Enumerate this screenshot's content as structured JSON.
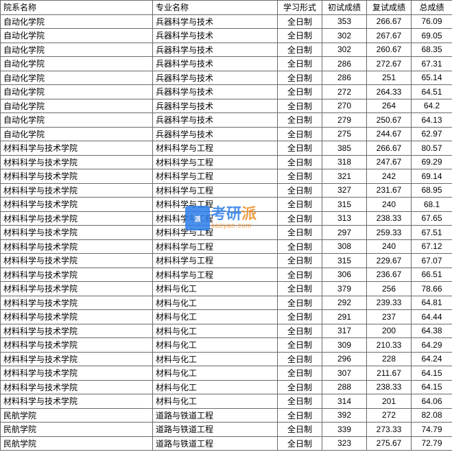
{
  "headers": {
    "dept": "院系名称",
    "major": "专业名称",
    "form": "学习形式",
    "score1": "初试成绩",
    "score2": "复试成绩",
    "total": "总成绩"
  },
  "rows": [
    {
      "dept": "自动化学院",
      "major": "兵器科学与技术",
      "form": "全日制",
      "s1": "353",
      "s2": "266.67",
      "t": "76.09"
    },
    {
      "dept": "自动化学院",
      "major": "兵器科学与技术",
      "form": "全日制",
      "s1": "302",
      "s2": "267.67",
      "t": "69.05"
    },
    {
      "dept": "自动化学院",
      "major": "兵器科学与技术",
      "form": "全日制",
      "s1": "302",
      "s2": "260.67",
      "t": "68.35"
    },
    {
      "dept": "自动化学院",
      "major": "兵器科学与技术",
      "form": "全日制",
      "s1": "286",
      "s2": "272.67",
      "t": "67.31"
    },
    {
      "dept": "自动化学院",
      "major": "兵器科学与技术",
      "form": "全日制",
      "s1": "286",
      "s2": "251",
      "t": "65.14"
    },
    {
      "dept": "自动化学院",
      "major": "兵器科学与技术",
      "form": "全日制",
      "s1": "272",
      "s2": "264.33",
      "t": "64.51"
    },
    {
      "dept": "自动化学院",
      "major": "兵器科学与技术",
      "form": "全日制",
      "s1": "270",
      "s2": "264",
      "t": "64.2"
    },
    {
      "dept": "自动化学院",
      "major": "兵器科学与技术",
      "form": "全日制",
      "s1": "279",
      "s2": "250.67",
      "t": "64.13"
    },
    {
      "dept": "自动化学院",
      "major": "兵器科学与技术",
      "form": "全日制",
      "s1": "275",
      "s2": "244.67",
      "t": "62.97"
    },
    {
      "dept": "材料科学与技术学院",
      "major": "材料科学与工程",
      "form": "全日制",
      "s1": "385",
      "s2": "266.67",
      "t": "80.57"
    },
    {
      "dept": "材料科学与技术学院",
      "major": "材料科学与工程",
      "form": "全日制",
      "s1": "318",
      "s2": "247.67",
      "t": "69.29"
    },
    {
      "dept": "材料科学与技术学院",
      "major": "材料科学与工程",
      "form": "全日制",
      "s1": "321",
      "s2": "242",
      "t": "69.14"
    },
    {
      "dept": "材料科学与技术学院",
      "major": "材料科学与工程",
      "form": "全日制",
      "s1": "327",
      "s2": "231.67",
      "t": "68.95"
    },
    {
      "dept": "材料科学与技术学院",
      "major": "材料科学与工程",
      "form": "全日制",
      "s1": "315",
      "s2": "240",
      "t": "68.1"
    },
    {
      "dept": "材料科学与技术学院",
      "major": "材料科学与工程",
      "form": "全日制",
      "s1": "313",
      "s2": "238.33",
      "t": "67.65"
    },
    {
      "dept": "材料科学与技术学院",
      "major": "材料科学与工程",
      "form": "全日制",
      "s1": "297",
      "s2": "259.33",
      "t": "67.51"
    },
    {
      "dept": "材料科学与技术学院",
      "major": "材料科学与工程",
      "form": "全日制",
      "s1": "308",
      "s2": "240",
      "t": "67.12"
    },
    {
      "dept": "材料科学与技术学院",
      "major": "材料科学与工程",
      "form": "全日制",
      "s1": "315",
      "s2": "229.67",
      "t": "67.07"
    },
    {
      "dept": "材料科学与技术学院",
      "major": "材料科学与工程",
      "form": "全日制",
      "s1": "306",
      "s2": "236.67",
      "t": "66.51"
    },
    {
      "dept": "材料科学与技术学院",
      "major": "材料与化工",
      "form": "全日制",
      "s1": "379",
      "s2": "256",
      "t": "78.66"
    },
    {
      "dept": "材料科学与技术学院",
      "major": "材料与化工",
      "form": "全日制",
      "s1": "292",
      "s2": "239.33",
      "t": "64.81"
    },
    {
      "dept": "材料科学与技术学院",
      "major": "材料与化工",
      "form": "全日制",
      "s1": "291",
      "s2": "237",
      "t": "64.44"
    },
    {
      "dept": "材料科学与技术学院",
      "major": "材料与化工",
      "form": "全日制",
      "s1": "317",
      "s2": "200",
      "t": "64.38"
    },
    {
      "dept": "材料科学与技术学院",
      "major": "材料与化工",
      "form": "全日制",
      "s1": "309",
      "s2": "210.33",
      "t": "64.29"
    },
    {
      "dept": "材料科学与技术学院",
      "major": "材料与化工",
      "form": "全日制",
      "s1": "296",
      "s2": "228",
      "t": "64.24"
    },
    {
      "dept": "材料科学与技术学院",
      "major": "材料与化工",
      "form": "全日制",
      "s1": "307",
      "s2": "211.67",
      "t": "64.15"
    },
    {
      "dept": "材料科学与技术学院",
      "major": "材料与化工",
      "form": "全日制",
      "s1": "288",
      "s2": "238.33",
      "t": "64.15"
    },
    {
      "dept": "材料科学与技术学院",
      "major": "材料与化工",
      "form": "全日制",
      "s1": "314",
      "s2": "201",
      "t": "64.06"
    },
    {
      "dept": "民航学院",
      "major": "道路与铁道工程",
      "form": "全日制",
      "s1": "392",
      "s2": "272",
      "t": "82.08"
    },
    {
      "dept": "民航学院",
      "major": "道路与铁道工程",
      "form": "全日制",
      "s1": "339",
      "s2": "273.33",
      "t": "74.79"
    },
    {
      "dept": "民航学院",
      "major": "道路与铁道工程",
      "form": "全日制",
      "s1": "323",
      "s2": "275.67",
      "t": "72.79"
    }
  ],
  "watermark": {
    "brand_blue": "考研",
    "brand_orange": "派",
    "url": "kaoyan.com",
    "icon_text": "派"
  }
}
